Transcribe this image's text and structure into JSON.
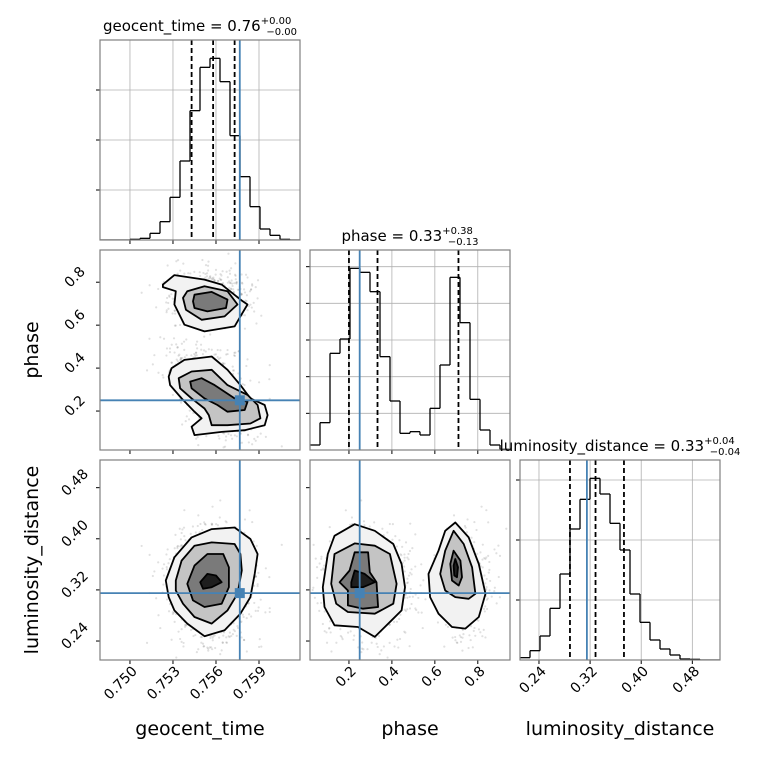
{
  "chart_data": {
    "type": "corner",
    "colors": {
      "truth": "#4682b4",
      "hist": "#000000",
      "grid": "#b0b0b0",
      "frame": "#808080",
      "scatter": "#000000"
    },
    "grid": "on (1D histograms)",
    "parameters": [
      {
        "name": "geocent_time",
        "label": "geocent_time",
        "range": [
          0.74791,
          0.76186
        ],
        "ticks": [
          0.75,
          0.753,
          0.756,
          0.759
        ],
        "tick_labels": [
          "0.750",
          "0.753",
          "0.756",
          "0.759"
        ],
        "truth": 0.75766,
        "quantiles": [
          0.7543,
          0.7558,
          0.7573
        ],
        "title": {
          "base": "geocent_time = 0.76",
          "plus": "+0.00",
          "minus": "−0.00"
        },
        "histogram": {
          "bins": 20,
          "ymax": 600,
          "yticks": [
            150,
            300,
            450
          ],
          "counts": [
            0,
            0,
            0,
            2,
            5,
            20,
            55,
            128,
            237,
            388,
            518,
            545,
            475,
            313,
            190,
            100,
            33,
            14,
            2,
            0
          ]
        }
      },
      {
        "name": "phase",
        "label": "phase",
        "range": [
          0.0186,
          0.95
        ],
        "ticks": [
          0.2,
          0.4,
          0.6,
          0.8
        ],
        "tick_labels": [
          "0.2",
          "0.4",
          "0.6",
          "0.8"
        ],
        "truth": 0.25,
        "quantiles": [
          0.2,
          0.333,
          0.71
        ],
        "title": {
          "base": "phase = 0.33",
          "plus": "+0.38",
          "minus": "−0.13"
        },
        "histogram": {
          "bins": 20,
          "ymax": 600,
          "yticks": [
            110,
            220,
            330,
            440,
            550
          ],
          "counts": [
            15,
            82,
            290,
            333,
            545,
            533,
            475,
            280,
            147,
            50,
            55,
            45,
            125,
            255,
            518,
            382,
            152,
            60,
            15,
            2
          ]
        }
      },
      {
        "name": "luminosity_distance",
        "label": "luminosity_distance",
        "range": [
          0.2103,
          0.5233
        ],
        "ticks": [
          0.24,
          0.32,
          0.4,
          0.48
        ],
        "tick_labels": [
          "0.24",
          "0.32",
          "0.40",
          "0.48"
        ],
        "truth": 0.315,
        "quantiles": [
          0.2885,
          0.3285,
          0.373
        ],
        "title": {
          "base": "luminosity_distance = 0.33",
          "plus": "+0.04",
          "minus": "−0.04"
        },
        "histogram": {
          "bins": 20,
          "ymax": 600,
          "yticks": [
            180,
            360,
            540
          ],
          "counts": [
            7,
            28,
            72,
            155,
            258,
            393,
            482,
            545,
            498,
            410,
            330,
            198,
            113,
            60,
            33,
            15,
            3,
            2,
            0,
            0
          ]
        }
      }
    ],
    "pairs": [
      {
        "x": "geocent_time",
        "y": "phase",
        "contours": [
          [
            [
              0.7523,
              0.789
            ],
            [
              0.7531,
              0.833
            ],
            [
              0.7552,
              0.812
            ],
            [
              0.7564,
              0.789
            ],
            [
              0.7577,
              0.719
            ],
            [
              0.7582,
              0.696
            ],
            [
              0.7577,
              0.641
            ],
            [
              0.7573,
              0.594
            ],
            [
              0.7552,
              0.571
            ],
            [
              0.7538,
              0.602
            ],
            [
              0.7531,
              0.696
            ],
            [
              0.7532,
              0.758
            ],
            [
              0.7523,
              0.777
            ]
          ],
          [
            [
              0.754,
              0.758
            ],
            [
              0.7552,
              0.781
            ],
            [
              0.7568,
              0.758
            ],
            [
              0.7575,
              0.696
            ],
            [
              0.7566,
              0.641
            ],
            [
              0.755,
              0.625
            ],
            [
              0.7539,
              0.672
            ],
            [
              0.7537,
              0.727
            ]
          ],
          [
            [
              0.7545,
              0.742
            ],
            [
              0.7557,
              0.755
            ],
            [
              0.7568,
              0.719
            ],
            [
              0.7567,
              0.68
            ],
            [
              0.7554,
              0.664
            ],
            [
              0.7545,
              0.68
            ],
            [
              0.7544,
              0.711
            ]
          ],
          [
            [
              0.7529,
              0.399
            ],
            [
              0.7538,
              0.438
            ],
            [
              0.7557,
              0.454
            ],
            [
              0.7568,
              0.392
            ],
            [
              0.7577,
              0.321
            ],
            [
              0.7584,
              0.259
            ],
            [
              0.7594,
              0.228
            ],
            [
              0.7596,
              0.181
            ],
            [
              0.7594,
              0.134
            ],
            [
              0.758,
              0.111
            ],
            [
              0.7564,
              0.103
            ],
            [
              0.7545,
              0.088
            ],
            [
              0.7543,
              0.127
            ],
            [
              0.755,
              0.166
            ],
            [
              0.7545,
              0.197
            ],
            [
              0.7536,
              0.259
            ],
            [
              0.7528,
              0.321
            ],
            [
              0.7527,
              0.36
            ]
          ],
          [
            [
              0.7534,
              0.353
            ],
            [
              0.7543,
              0.384
            ],
            [
              0.7557,
              0.392
            ],
            [
              0.7568,
              0.321
            ],
            [
              0.7582,
              0.275
            ],
            [
              0.7589,
              0.228
            ],
            [
              0.7591,
              0.166
            ],
            [
              0.7584,
              0.142
            ],
            [
              0.7568,
              0.134
            ],
            [
              0.7557,
              0.134
            ],
            [
              0.7555,
              0.181
            ],
            [
              0.7552,
              0.212
            ],
            [
              0.7543,
              0.259
            ],
            [
              0.7535,
              0.306
            ]
          ],
          [
            [
              0.7542,
              0.337
            ],
            [
              0.755,
              0.353
            ],
            [
              0.7559,
              0.321
            ],
            [
              0.7573,
              0.259
            ],
            [
              0.7582,
              0.243
            ],
            [
              0.758,
              0.205
            ],
            [
              0.7568,
              0.197
            ],
            [
              0.7561,
              0.228
            ],
            [
              0.7552,
              0.259
            ],
            [
              0.7543,
              0.306
            ]
          ]
        ],
        "contour_levels": [
          0,
          1,
          2,
          0,
          1,
          2
        ]
      },
      {
        "x": "geocent_time",
        "y": "luminosity_distance",
        "contours": [
          [
            [
              0.7525,
              0.3347
            ],
            [
              0.7531,
              0.371
            ],
            [
              0.7543,
              0.4022
            ],
            [
              0.7557,
              0.4151
            ],
            [
              0.7573,
              0.4177
            ],
            [
              0.7584,
              0.3996
            ],
            [
              0.7589,
              0.3762
            ],
            [
              0.7587,
              0.3451
            ],
            [
              0.7584,
              0.3087
            ],
            [
              0.7577,
              0.2828
            ],
            [
              0.7566,
              0.2568
            ],
            [
              0.7552,
              0.2475
            ],
            [
              0.754,
              0.2672
            ],
            [
              0.7531,
              0.288
            ],
            [
              0.7527,
              0.3087
            ]
          ],
          [
            [
              0.7532,
              0.3347
            ],
            [
              0.7536,
              0.3658
            ],
            [
              0.7545,
              0.3892
            ],
            [
              0.7557,
              0.3944
            ],
            [
              0.7573,
              0.3918
            ],
            [
              0.7577,
              0.3762
            ],
            [
              0.7578,
              0.3503
            ],
            [
              0.7575,
              0.3139
            ],
            [
              0.7568,
              0.288
            ],
            [
              0.7557,
              0.2672
            ],
            [
              0.7545,
              0.2776
            ],
            [
              0.7537,
              0.2984
            ],
            [
              0.7532,
              0.3191
            ]
          ],
          [
            [
              0.754,
              0.3295
            ],
            [
              0.7545,
              0.358
            ],
            [
              0.7554,
              0.3762
            ],
            [
              0.7565,
              0.3762
            ],
            [
              0.7569,
              0.3554
            ],
            [
              0.7569,
              0.3243
            ],
            [
              0.7564,
              0.2984
            ],
            [
              0.7552,
              0.2932
            ],
            [
              0.7544,
              0.3035
            ]
          ],
          [
            [
              0.7549,
              0.332
            ],
            [
              0.7554,
              0.345
            ],
            [
              0.756,
              0.3425
            ],
            [
              0.7564,
              0.332
            ],
            [
              0.7557,
              0.3243
            ],
            [
              0.7551,
              0.3217
            ]
          ]
        ],
        "contour_levels": [
          0,
          1,
          2,
          3
        ]
      },
      {
        "x": "phase",
        "y": "luminosity_distance",
        "contours": [
          [
            [
              0.0781,
              0.3243
            ],
            [
              0.1016,
              0.3762
            ],
            [
              0.1328,
              0.4047
            ],
            [
              0.2266,
              0.4229
            ],
            [
              0.3203,
              0.4125
            ],
            [
              0.4063,
              0.3918
            ],
            [
              0.4453,
              0.3606
            ],
            [
              0.4609,
              0.3243
            ],
            [
              0.4453,
              0.288
            ],
            [
              0.3984,
              0.2724
            ],
            [
              0.3203,
              0.2465
            ],
            [
              0.2422,
              0.262
            ],
            [
              0.1328,
              0.2646
            ],
            [
              0.0859,
              0.2932
            ]
          ],
          [
            [
              0.1172,
              0.3295
            ],
            [
              0.1328,
              0.3762
            ],
            [
              0.2266,
              0.3928
            ],
            [
              0.3203,
              0.3892
            ],
            [
              0.3906,
              0.3762
            ],
            [
              0.4219,
              0.3295
            ],
            [
              0.4063,
              0.2984
            ],
            [
              0.3203,
              0.2828
            ],
            [
              0.1953,
              0.2854
            ],
            [
              0.1406,
              0.2984
            ]
          ],
          [
            [
              0.1563,
              0.332
            ],
            [
              0.2031,
              0.3503
            ],
            [
              0.2266,
              0.3788
            ],
            [
              0.2891,
              0.3788
            ],
            [
              0.2969,
              0.3477
            ],
            [
              0.3281,
              0.332
            ],
            [
              0.3359,
              0.2932
            ],
            [
              0.2656,
              0.2906
            ],
            [
              0.1953,
              0.2958
            ],
            [
              0.1953,
              0.3191
            ]
          ],
          [
            [
              0.2109,
              0.332
            ],
            [
              0.2266,
              0.3503
            ],
            [
              0.2734,
              0.345
            ],
            [
              0.3203,
              0.332
            ],
            [
              0.2656,
              0.3243
            ],
            [
              0.2109,
              0.3243
            ]
          ],
          [
            [
              0.5703,
              0.3451
            ],
            [
              0.6172,
              0.3814
            ],
            [
              0.6484,
              0.4125
            ],
            [
              0.6953,
              0.4255
            ],
            [
              0.7578,
              0.4022
            ],
            [
              0.8047,
              0.3606
            ],
            [
              0.8359,
              0.3139
            ],
            [
              0.8047,
              0.2776
            ],
            [
              0.7422,
              0.2594
            ],
            [
              0.6797,
              0.262
            ],
            [
              0.6172,
              0.2828
            ],
            [
              0.5781,
              0.3087
            ]
          ],
          [
            [
              0.625,
              0.3451
            ],
            [
              0.6484,
              0.3814
            ],
            [
              0.6875,
              0.4125
            ],
            [
              0.7344,
              0.3918
            ],
            [
              0.7734,
              0.3554
            ],
            [
              0.7891,
              0.3139
            ],
            [
              0.7578,
              0.3061
            ],
            [
              0.6953,
              0.3087
            ],
            [
              0.6484,
              0.3191
            ]
          ],
          [
            [
              0.6719,
              0.3606
            ],
            [
              0.6875,
              0.3814
            ],
            [
              0.7188,
              0.3658
            ],
            [
              0.7266,
              0.3399
            ],
            [
              0.7109,
              0.3269
            ],
            [
              0.6797,
              0.3347
            ]
          ],
          [
            [
              0.6875,
              0.358
            ],
            [
              0.6953,
              0.3684
            ],
            [
              0.7078,
              0.3554
            ],
            [
              0.7031,
              0.3399
            ],
            [
              0.6906,
              0.3425
            ]
          ]
        ],
        "contour_levels": [
          0,
          1,
          2,
          3,
          0,
          1,
          2,
          3
        ]
      }
    ]
  }
}
